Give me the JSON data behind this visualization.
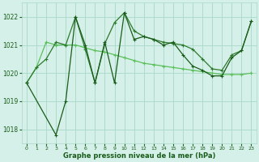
{
  "series1_x": [
    0,
    1,
    2,
    3,
    4,
    5,
    6,
    7,
    8,
    9,
    10,
    11,
    12,
    13,
    14,
    15,
    16,
    17,
    18,
    19,
    20,
    21,
    22,
    23
  ],
  "series1_y": [
    1019.65,
    1020.2,
    1021.1,
    1021.0,
    1021.0,
    1021.0,
    1020.9,
    1020.8,
    1020.75,
    1020.65,
    1020.55,
    1020.45,
    1020.35,
    1020.3,
    1020.25,
    1020.2,
    1020.15,
    1020.1,
    1020.05,
    1020.0,
    1019.95,
    1019.95,
    1019.95,
    1020.0
  ],
  "series2_x": [
    0,
    1,
    2,
    3,
    4,
    5,
    6,
    7,
    8,
    9,
    10,
    11,
    12,
    13,
    14,
    15,
    16,
    17,
    18,
    19,
    20,
    21,
    22,
    23
  ],
  "series2_y": [
    1019.65,
    1020.2,
    1020.5,
    1021.1,
    1021.0,
    1022.0,
    1020.85,
    1019.65,
    1021.05,
    1021.8,
    1022.15,
    1021.5,
    1021.3,
    1021.2,
    1021.1,
    1021.05,
    1021.0,
    1020.85,
    1020.5,
    1020.15,
    1020.1,
    1020.65,
    1020.8,
    1021.85
  ],
  "series3_x": [
    0,
    3,
    4,
    5,
    6,
    7,
    8,
    9,
    10,
    11,
    12,
    13,
    14,
    15,
    16,
    17,
    18,
    19,
    20,
    21,
    22,
    23
  ],
  "series3_y": [
    1019.65,
    1017.8,
    1019.0,
    1022.0,
    1021.0,
    1019.65,
    1021.1,
    1019.65,
    1022.15,
    1021.2,
    1021.3,
    1021.2,
    1021.0,
    1021.1,
    1020.65,
    1020.25,
    1020.1,
    1019.9,
    1019.9,
    1020.55,
    1020.8,
    1021.85
  ],
  "line_color1": "#5bbf5b",
  "line_color2": "#2d7a2d",
  "line_color3": "#1a5c1a",
  "bg_color": "#d4f0e8",
  "grid_color": "#a8d8c8",
  "text_color": "#1a5c1a",
  "xlabel": "Graphe pression niveau de la mer (hPa)",
  "ylim_min": 1017.5,
  "ylim_max": 1022.5,
  "yticks": [
    1018,
    1019,
    1020,
    1021,
    1022
  ],
  "xlim_min": -0.5,
  "xlim_max": 23.5
}
